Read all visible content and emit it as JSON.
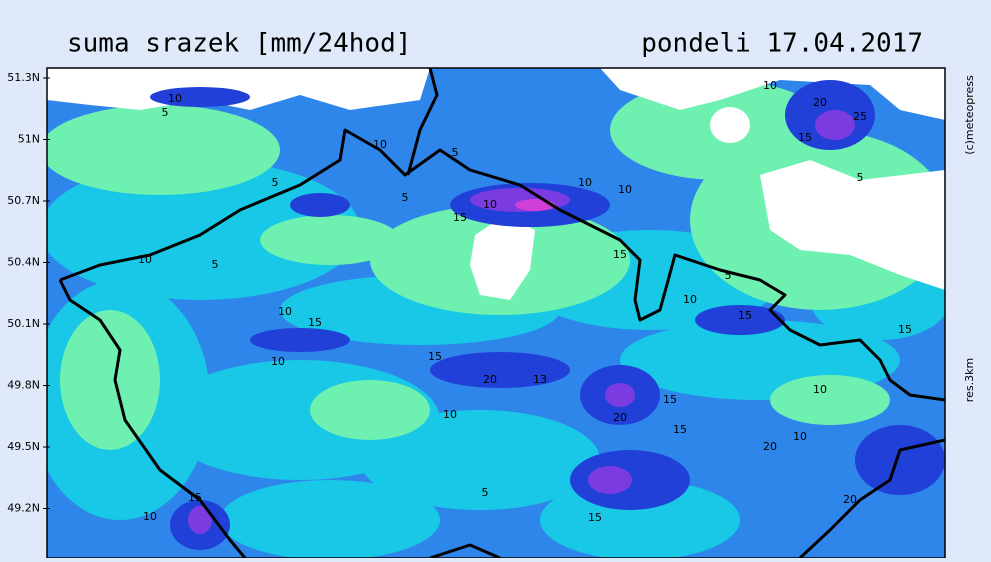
{
  "header": {
    "title": "suma srazek [mm/24hod]",
    "date": "pondeli 17.04.2017"
  },
  "map": {
    "lat_labels": [
      "51.3N",
      "51N",
      "50.7N",
      "50.4N",
      "50.1N",
      "49.8N",
      "49.5N",
      "49.2N"
    ],
    "credit": "(c)meteopress",
    "resolution": "res.3km",
    "contour_labels": [
      "10",
      "5",
      "10",
      "5",
      "5",
      "10",
      "5",
      "10",
      "15",
      "10",
      "5",
      "10",
      "20",
      "15",
      "25",
      "5",
      "10",
      "15",
      "15",
      "10",
      "5",
      "10",
      "15",
      "20",
      "13",
      "15",
      "10",
      "10",
      "20",
      "15",
      "10",
      "20",
      "15",
      "10",
      "15",
      "5",
      "15",
      "10",
      "15",
      "20"
    ]
  }
}
